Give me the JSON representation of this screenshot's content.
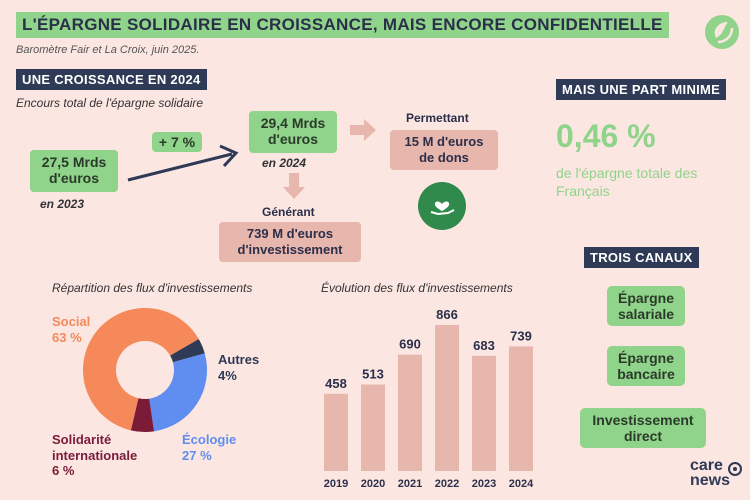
{
  "header": {
    "title": "L'ÉPARGNE SOLIDAIRE EN CROISSANCE, MAIS ENCORE CONFIDENTIELLE",
    "subtitle": "Baromètre Fair et La Croix, juin 2025."
  },
  "growth": {
    "heading": "UNE CROISSANCE EN 2024",
    "caption": "Encours total de l'épargne solidaire",
    "value_2023": "27,5 Mrds d'euros",
    "year_2023": "en 2023",
    "change": "+ 7 %",
    "value_2024": "29,4 Mrds d'euros",
    "year_2024": "en 2024",
    "enabling_label": "Permettant",
    "donations": "15 M d'euros de dons",
    "generating_label": "Générant",
    "investment": "739 M d'euros d'investissement"
  },
  "share": {
    "heading": "MAIS UNE PART MINIME",
    "value": "0,46 %",
    "caption": "de l'épargne totale des Français"
  },
  "channels": {
    "heading": "TROIS CANAUX",
    "items": [
      "Épargne salariale",
      "Épargne bancaire",
      "Investissement direct"
    ]
  },
  "brand": {
    "line1": "care",
    "line2": "news"
  },
  "chart_data": [
    {
      "type": "pie",
      "title": "Répartition des flux d'investissements",
      "slices": [
        {
          "label": "Social",
          "value": 63,
          "display": "63 %",
          "color": "#f5895a"
        },
        {
          "label": "Écologie",
          "value": 27,
          "display": "27 %",
          "color": "#5f8ef0"
        },
        {
          "label": "Solidarité internationale",
          "value": 6,
          "display": "6 %",
          "color": "#7b1b38"
        },
        {
          "label": "Autres",
          "value": 4,
          "display": "4%",
          "color": "#2f3a56"
        }
      ]
    },
    {
      "type": "bar",
      "title": "Évolution des flux d'investissements",
      "categories": [
        "2019",
        "2020",
        "2021",
        "2022",
        "2023",
        "2024"
      ],
      "values": [
        458,
        513,
        690,
        866,
        683,
        739
      ],
      "ylim": [
        0,
        866
      ],
      "color": "#e7b6ad"
    }
  ]
}
